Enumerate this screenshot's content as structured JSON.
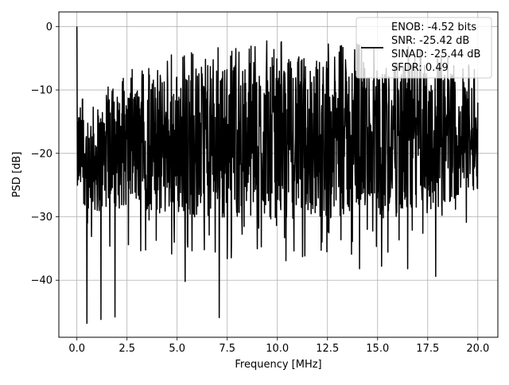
{
  "chart_data": {
    "type": "line",
    "title": "",
    "xlabel": "Frequency [MHz]",
    "ylabel": "PSD [dB]",
    "xlim": [
      -0.9,
      21.0
    ],
    "ylim": [
      -49.0,
      2.3
    ],
    "xticks": [
      0.0,
      2.5,
      5.0,
      7.5,
      10.0,
      12.5,
      15.0,
      17.5,
      20.0
    ],
    "xtick_labels": [
      "0.0",
      "2.5",
      "5.0",
      "7.5",
      "10.0",
      "12.5",
      "15.0",
      "17.5",
      "20.0"
    ],
    "yticks": [
      0,
      -10,
      -20,
      -30,
      -40
    ],
    "ytick_labels": [
      "0",
      "−10",
      "−20",
      "−30",
      "−40"
    ],
    "grid": true,
    "legend_position": "top-right",
    "legend_lines": [
      "ENOB: -4.52 bits",
      "SNR: -25.42 dB",
      "SINAD: -25.44 dB",
      "SFDR: 0.49"
    ],
    "series": [
      {
        "color": "#000000",
        "x_range": [
          0.0,
          20.0
        ],
        "peaks": [
          {
            "x": 0.0,
            "y": 0.0
          },
          {
            "x": 0.5,
            "y": -46.8
          },
          {
            "x": 1.2,
            "y": -46.2
          },
          {
            "x": 1.9,
            "y": -45.8
          },
          {
            "x": 5.4,
            "y": -40.2
          },
          {
            "x": 7.1,
            "y": -45.9
          },
          {
            "x": 14.1,
            "y": -38.2
          },
          {
            "x": 15.2,
            "y": -37.8
          },
          {
            "x": 16.5,
            "y": -38.2
          },
          {
            "x": 17.9,
            "y": -39.4
          }
        ],
        "envelope": [
          {
            "x": 0.0,
            "upper": -12,
            "lower": -28
          },
          {
            "x": 1.0,
            "upper": -12,
            "lower": -30
          },
          {
            "x": 2.5,
            "upper": -9,
            "lower": -29
          },
          {
            "x": 5.0,
            "upper": -6,
            "lower": -31
          },
          {
            "x": 7.5,
            "upper": -5,
            "lower": -31
          },
          {
            "x": 10.0,
            "upper": -4,
            "lower": -31
          },
          {
            "x": 12.5,
            "upper": -4,
            "lower": -31
          },
          {
            "x": 15.0,
            "upper": -5,
            "lower": -31
          },
          {
            "x": 17.5,
            "upper": -5,
            "lower": -30
          },
          {
            "x": 20.0,
            "upper": -8,
            "lower": -26
          }
        ]
      }
    ]
  }
}
